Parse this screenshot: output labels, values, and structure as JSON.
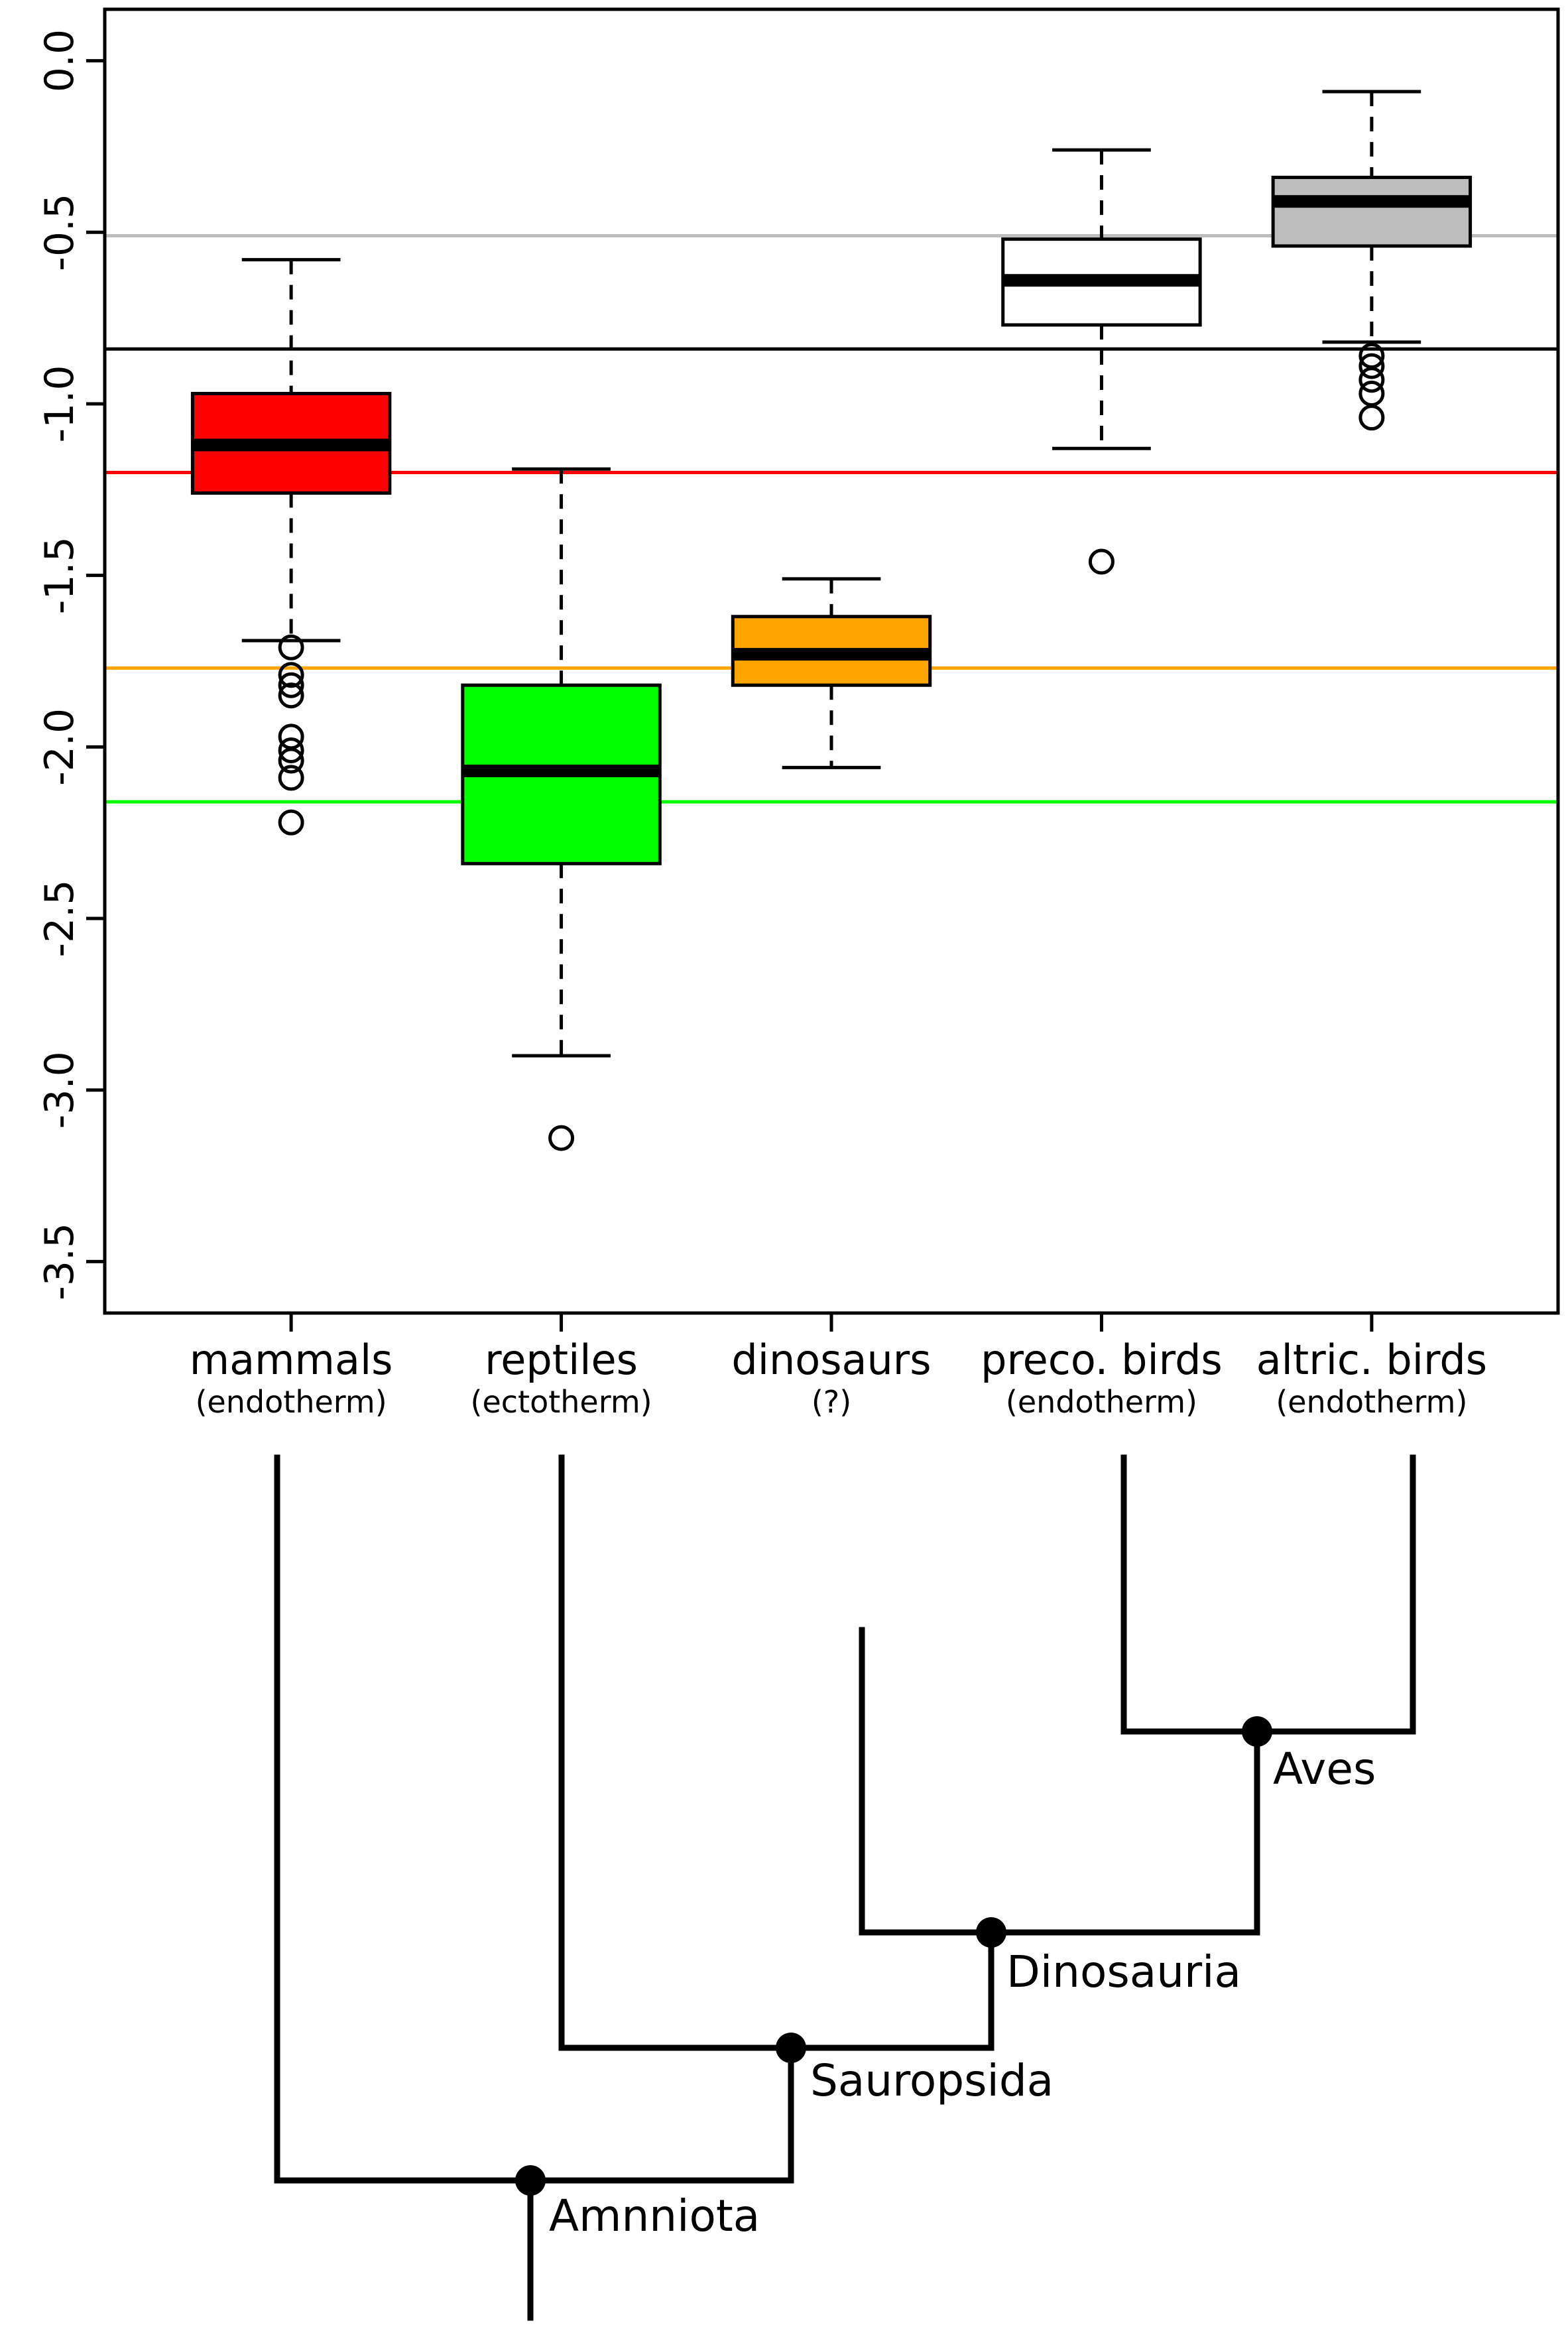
{
  "chart_data": {
    "type": "boxplot",
    "ylim": [
      -3.65,
      0.15
    ],
    "y_ticks": [
      0.0,
      -0.5,
      -1.0,
      -1.5,
      -2.0,
      -2.5,
      -3.0,
      -3.5
    ],
    "y_tick_labels": [
      "0.0",
      "-0.5",
      "-1.0",
      "-1.5",
      "-2.0",
      "-2.5",
      "-3.0",
      "-3.5"
    ],
    "groups": [
      {
        "label": "mammals",
        "sublabel": "(endotherm)",
        "color": "#ff0000",
        "whisker_low": -1.69,
        "q1": -1.26,
        "median": -1.12,
        "q3": -0.97,
        "whisker_high": -0.58,
        "outliers": [
          -1.71,
          -1.79,
          -1.82,
          -1.85,
          -1.97,
          -2.01,
          -2.04,
          -2.09,
          -2.22
        ]
      },
      {
        "label": "reptiles",
        "sublabel": "(ectotherm)",
        "color": "#00ff00",
        "whisker_low": -2.9,
        "q1": -2.34,
        "median": -2.07,
        "q3": -1.82,
        "whisker_high": -1.19,
        "outliers": [
          -3.14
        ]
      },
      {
        "label": "dinosaurs",
        "sublabel": "(?)",
        "color": "#ffa500",
        "whisker_low": -2.06,
        "q1": -1.82,
        "median": -1.73,
        "q3": -1.62,
        "whisker_high": -1.51,
        "outliers": []
      },
      {
        "label": "preco. birds",
        "sublabel": "(endotherm)",
        "color": "#ffffff",
        "whisker_low": -1.13,
        "q1": -0.77,
        "median": -0.64,
        "q3": -0.52,
        "whisker_high": -0.26,
        "outliers": [
          -1.46
        ]
      },
      {
        "label": "altric. birds",
        "sublabel": "(endotherm)",
        "color": "#bebebe",
        "whisker_low": -0.82,
        "q1": -0.54,
        "median": -0.41,
        "q3": -0.34,
        "whisker_high": -0.09,
        "outliers": [
          -0.86,
          -0.89,
          -0.93,
          -0.97,
          -1.04
        ]
      }
    ],
    "reference_lines": [
      {
        "y": -0.51,
        "color": "#bebebe"
      },
      {
        "y": -0.84,
        "color": "#000000"
      },
      {
        "y": -1.2,
        "color": "#ff0000"
      },
      {
        "y": -1.77,
        "color": "#ffa500"
      },
      {
        "y": -2.16,
        "color": "#00ff00"
      }
    ]
  },
  "tree": {
    "nodes": [
      {
        "label": "Amnniota"
      },
      {
        "label": "Sauropsida"
      },
      {
        "label": "Dinosauria"
      },
      {
        "label": "Aves"
      }
    ]
  }
}
